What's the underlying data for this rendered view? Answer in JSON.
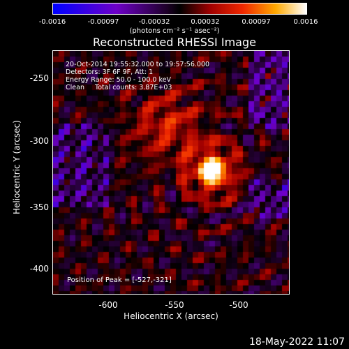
{
  "colorbar": {
    "ticks": [
      "-0.0016",
      "-0.00097",
      "-0.00032",
      "0.00032",
      "0.00097",
      "0.0016"
    ],
    "units": "(photons cm⁻² s⁻¹ asec⁻²)"
  },
  "title": "Reconstructed RHESSI Image",
  "info": {
    "time_range": "20-Oct-2014 19:55:32.000 to 19:57:56.000",
    "detectors": "Detectors: 3F 6F 9F, Att: 1",
    "energy": "Energy Range: 50.0 - 100.0 keV",
    "clean": "Clean     Total counts: 3.87E+03"
  },
  "peak_label": "Position of Peak = [-527,-321]",
  "axes": {
    "xlabel": "Heliocentric X (arcsec)",
    "ylabel": "Heliocentric Y (arcsec)",
    "xticks": [
      "-600",
      "-550",
      "-500"
    ],
    "yticks": [
      "-250",
      "-300",
      "-350",
      "-400"
    ]
  },
  "timestamp": "18-May-2022 11:07"
}
